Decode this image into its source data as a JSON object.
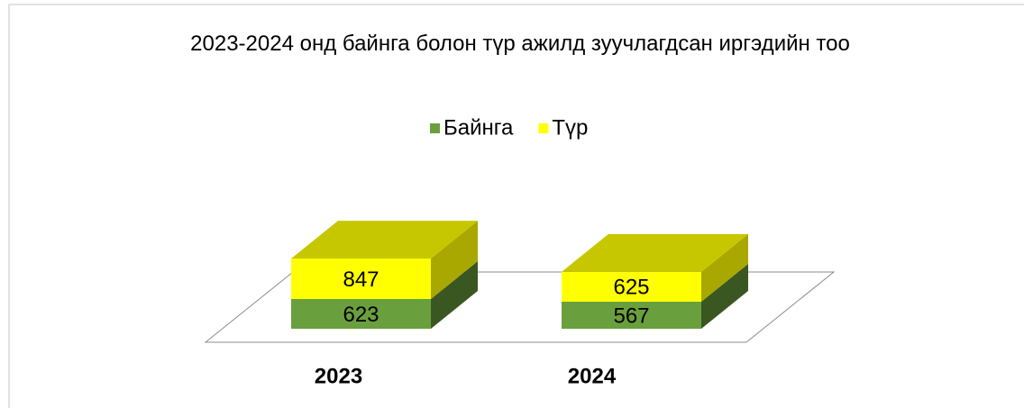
{
  "chart_data": {
    "type": "bar3d_stacked",
    "title": "2023-2024 онд байнга болон түр ажилд зуучлагдсан иргэдийн тоо",
    "categories": [
      "2023",
      "2024"
    ],
    "series": [
      {
        "name": "Байнга",
        "color": "#6a9f3e",
        "values": [
          623,
          567
        ]
      },
      {
        "name": "Түр",
        "color": "#ffff00",
        "values": [
          847,
          625
        ]
      }
    ],
    "legend": "top"
  }
}
